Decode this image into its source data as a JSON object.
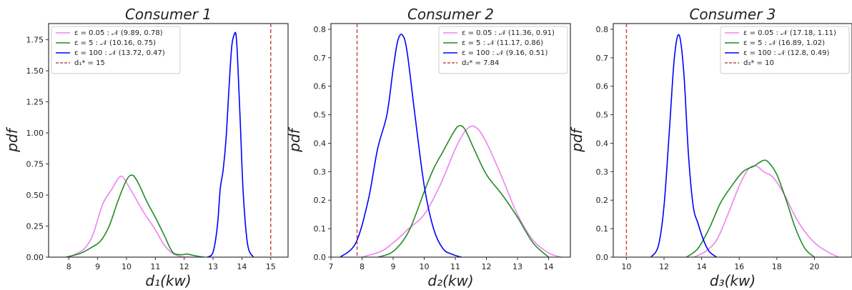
{
  "chart_data": [
    {
      "type": "line",
      "title": "Consumer 1",
      "xlabel": "d₁(kw)",
      "ylabel": "pdf",
      "xlim": [
        7.3,
        15.6
      ],
      "ylim": [
        0,
        1.88
      ],
      "xticks": [
        "8",
        "9",
        "10",
        "11",
        "12",
        "13",
        "14",
        "15"
      ],
      "xtick_values": [
        8,
        9,
        10,
        11,
        12,
        13,
        14,
        15
      ],
      "yticks": [
        "0.00",
        "0.25",
        "0.50",
        "0.75",
        "1.00",
        "1.25",
        "1.50",
        "1.75"
      ],
      "ytick_values": [
        0,
        0.25,
        0.5,
        0.75,
        1.0,
        1.25,
        1.5,
        1.75
      ],
      "legend_position": "top-left",
      "series": [
        {
          "name": "ε = 0.05 : 𝒩 (9.89, 0.78)",
          "color": "#ee82ee",
          "x": [
            8.0,
            8.5,
            8.8,
            9.0,
            9.2,
            9.5,
            9.7,
            9.85,
            10.0,
            10.3,
            10.6,
            11.0,
            11.3,
            11.6,
            11.9,
            12.1,
            12.3
          ],
          "y": [
            0.0,
            0.06,
            0.16,
            0.3,
            0.44,
            0.55,
            0.63,
            0.65,
            0.6,
            0.48,
            0.36,
            0.22,
            0.1,
            0.03,
            0.005,
            0.0,
            0.0
          ]
        },
        {
          "name": "ε = 5 : 𝒩 (10.16, 0.75)",
          "color": "#228b22",
          "x": [
            7.9,
            8.4,
            8.8,
            9.1,
            9.4,
            9.7,
            10.0,
            10.2,
            10.4,
            10.7,
            11.0,
            11.3,
            11.6,
            11.9,
            12.1,
            12.4,
            12.7
          ],
          "y": [
            0.0,
            0.03,
            0.08,
            0.13,
            0.25,
            0.45,
            0.62,
            0.66,
            0.6,
            0.45,
            0.32,
            0.18,
            0.04,
            0.02,
            0.025,
            0.01,
            0.0
          ]
        },
        {
          "name": "ε = 100 : 𝒩 (13.72, 0.47)",
          "color": "#0000ff",
          "x": [
            12.8,
            13.0,
            13.15,
            13.25,
            13.35,
            13.45,
            13.55,
            13.65,
            13.75,
            13.8,
            13.85,
            13.95,
            14.05,
            14.2,
            14.4
          ],
          "y": [
            0.0,
            0.04,
            0.25,
            0.55,
            0.7,
            0.95,
            1.35,
            1.7,
            1.8,
            1.78,
            1.6,
            1.05,
            0.5,
            0.1,
            0.0
          ]
        }
      ],
      "reference_line": {
        "name": "d₁* = 15",
        "value": 15,
        "color": "#c0504d"
      }
    },
    {
      "type": "line",
      "title": "Consumer 2",
      "xlabel": "d₂(kw)",
      "ylabel": "pdf",
      "xlim": [
        7.0,
        14.7
      ],
      "ylim": [
        0,
        0.82
      ],
      "xticks": [
        "7",
        "8",
        "9",
        "10",
        "11",
        "12",
        "13",
        "14"
      ],
      "xtick_values": [
        7,
        8,
        9,
        10,
        11,
        12,
        13,
        14
      ],
      "yticks": [
        "0.0",
        "0.1",
        "0.2",
        "0.3",
        "0.4",
        "0.5",
        "0.6",
        "0.7",
        "0.8"
      ],
      "ytick_values": [
        0,
        0.1,
        0.2,
        0.3,
        0.4,
        0.5,
        0.6,
        0.7,
        0.8
      ],
      "legend_position": "top-right",
      "series": [
        {
          "name": "ε = 0.05 : 𝒩 (11.36, 0.91)",
          "color": "#ee82ee",
          "x": [
            8.0,
            8.6,
            9.0,
            9.5,
            10.0,
            10.5,
            11.0,
            11.3,
            11.55,
            11.8,
            12.1,
            12.5,
            13.0,
            13.5,
            14.0,
            14.4
          ],
          "y": [
            0.0,
            0.02,
            0.05,
            0.1,
            0.15,
            0.25,
            0.38,
            0.44,
            0.46,
            0.44,
            0.38,
            0.28,
            0.15,
            0.06,
            0.015,
            0.0
          ]
        },
        {
          "name": "ε = 5 : 𝒩 (11.17, 0.86)",
          "color": "#228b22",
          "x": [
            8.5,
            9.0,
            9.5,
            10.0,
            10.3,
            10.6,
            10.9,
            11.1,
            11.3,
            11.6,
            12.0,
            12.5,
            13.0,
            13.5,
            14.0
          ],
          "y": [
            0.0,
            0.02,
            0.09,
            0.23,
            0.31,
            0.37,
            0.43,
            0.46,
            0.45,
            0.38,
            0.29,
            0.22,
            0.14,
            0.05,
            0.0
          ]
        },
        {
          "name": "ε = 100 : 𝒩 (9.16, 0.51)",
          "color": "#0000ff",
          "x": [
            7.3,
            7.8,
            8.2,
            8.5,
            8.8,
            9.0,
            9.15,
            9.3,
            9.45,
            9.7,
            10.0,
            10.3,
            10.6,
            10.9,
            11.2
          ],
          "y": [
            0.0,
            0.05,
            0.2,
            0.38,
            0.5,
            0.66,
            0.76,
            0.78,
            0.72,
            0.5,
            0.25,
            0.1,
            0.03,
            0.01,
            0.0
          ]
        }
      ],
      "reference_line": {
        "name": "d₂* = 7.84",
        "value": 7.84,
        "color": "#c0504d"
      }
    },
    {
      "type": "line",
      "title": "Consumer 3",
      "xlabel": "d₃(kw)",
      "ylabel": "pdf",
      "xlim": [
        9.3,
        22.0
      ],
      "ylim": [
        0,
        0.82
      ],
      "xticks": [
        "10",
        "12",
        "14",
        "16",
        "18",
        "20"
      ],
      "xtick_values": [
        10,
        12,
        14,
        16,
        18,
        20
      ],
      "yticks": [
        "0.0",
        "0.1",
        "0.2",
        "0.3",
        "0.4",
        "0.5",
        "0.6",
        "0.7",
        "0.8"
      ],
      "ytick_values": [
        0,
        0.1,
        0.2,
        0.3,
        0.4,
        0.5,
        0.6,
        0.7,
        0.8
      ],
      "legend_position": "top-right",
      "series": [
        {
          "name": "ε = 0.05 : 𝒩 (17.18, 1.11)",
          "color": "#ee82ee",
          "x": [
            13.6,
            14.2,
            14.8,
            15.4,
            16.0,
            16.5,
            16.9,
            17.3,
            17.8,
            18.4,
            19.0,
            19.6,
            20.2,
            20.8,
            21.3
          ],
          "y": [
            0.0,
            0.02,
            0.06,
            0.15,
            0.25,
            0.31,
            0.32,
            0.3,
            0.28,
            0.22,
            0.14,
            0.08,
            0.04,
            0.015,
            0.0
          ]
        },
        {
          "name": "ε = 5 : 𝒩 (16.89, 1.02)",
          "color": "#228b22",
          "x": [
            13.2,
            13.8,
            14.4,
            15.0,
            15.6,
            16.2,
            16.8,
            17.3,
            17.6,
            18.0,
            18.5,
            19.0,
            19.5,
            20.0
          ],
          "y": [
            0.0,
            0.03,
            0.1,
            0.19,
            0.25,
            0.3,
            0.32,
            0.34,
            0.33,
            0.29,
            0.2,
            0.1,
            0.03,
            0.0
          ]
        },
        {
          "name": "ε = 100 : 𝒩 (12.8, 0.49)",
          "color": "#0000ff",
          "x": [
            11.3,
            11.7,
            12.0,
            12.3,
            12.55,
            12.8,
            13.05,
            13.3,
            13.55,
            13.8,
            14.1,
            14.4,
            14.8
          ],
          "y": [
            0.0,
            0.04,
            0.18,
            0.46,
            0.7,
            0.78,
            0.65,
            0.36,
            0.18,
            0.12,
            0.06,
            0.02,
            0.0
          ]
        }
      ],
      "reference_line": {
        "name": "d₃* = 10",
        "value": 10,
        "color": "#c0504d"
      }
    }
  ]
}
